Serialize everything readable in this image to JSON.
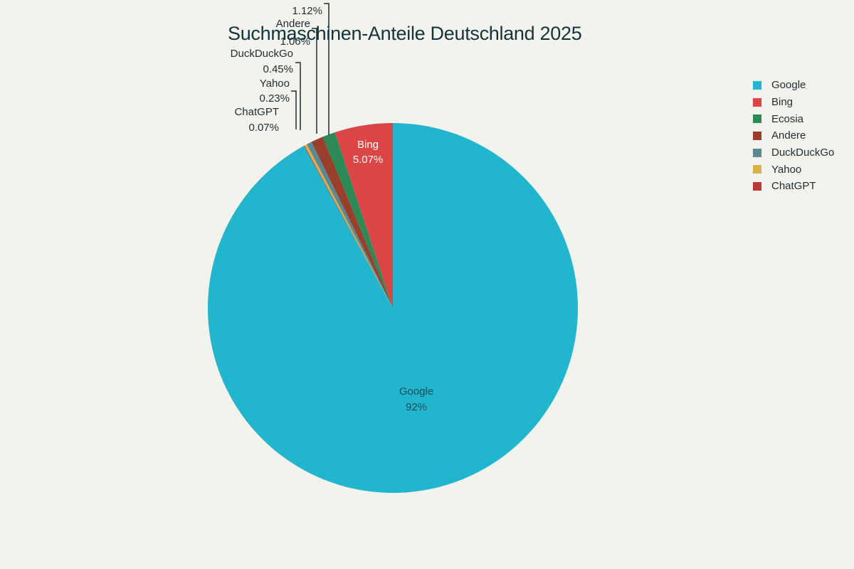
{
  "chart_data": {
    "type": "pie",
    "title": "Suchmaschinen-Anteile Deutschland 2025",
    "categories": [
      "Google",
      "Bing",
      "Ecosia",
      "Andere",
      "DuckDuckGo",
      "Yahoo",
      "ChatGPT"
    ],
    "values": [
      92,
      5.07,
      1.12,
      1.06,
      0.45,
      0.23,
      0.07
    ],
    "labels": [
      "92%",
      "5.07%",
      "1.12%",
      "1.06%",
      "0.45%",
      "0.23%",
      "0.07%"
    ],
    "colors": [
      "#21b6cd",
      "#db4546",
      "#2b8a55",
      "#98402b",
      "#5c8894",
      "#d8b14a",
      "#bb3a3a"
    ],
    "direction": "clockwise",
    "legend_position": "right"
  },
  "title": "Suchmaschinen-Anteile Deutschland 2025",
  "legend": [
    {
      "label": "Google",
      "color": "#21b6cd"
    },
    {
      "label": "Bing",
      "color": "#db4546"
    },
    {
      "label": "Ecosia",
      "color": "#2b8a55"
    },
    {
      "label": "Andere",
      "color": "#98402b"
    },
    {
      "label": "DuckDuckGo",
      "color": "#5c8894"
    },
    {
      "label": "Yahoo",
      "color": "#d8b14a"
    },
    {
      "label": "ChatGPT",
      "color": "#bb3a3a"
    }
  ]
}
